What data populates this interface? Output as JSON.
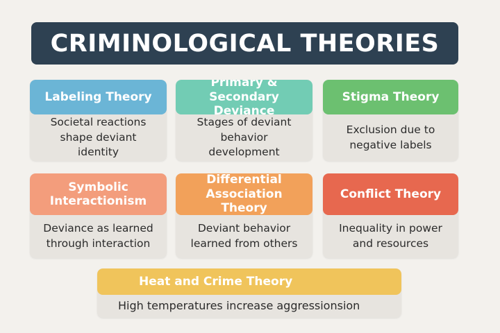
{
  "title": "CRIMINOLOGICAL THEORIES",
  "cards": [
    {
      "name": "Labeling Theory",
      "desc": "Societal reactions shape deviant identity",
      "color": "#6bb5d6"
    },
    {
      "name": "Primary & Secondary Deviance",
      "desc": "Stages of deviant behavior development",
      "color": "#72ccb4"
    },
    {
      "name": "Stigma Theory",
      "desc": "Exclusion due to negative labels",
      "color": "#6cc070"
    },
    {
      "name": "Symbolic Interactionism",
      "desc": "Deviance as learned through interaction",
      "color": "#f39d7c"
    },
    {
      "name": "Differential Association Theory",
      "desc": "Deviant behavior learned from others",
      "color": "#f2a15a"
    },
    {
      "name": "Conflict Theory",
      "desc": "Inequality in power and resources",
      "color": "#e7684f"
    },
    {
      "name": "Heat and Crime Theory",
      "desc": "High temperatures increase aggressionsion",
      "color": "#f0c45b"
    }
  ]
}
